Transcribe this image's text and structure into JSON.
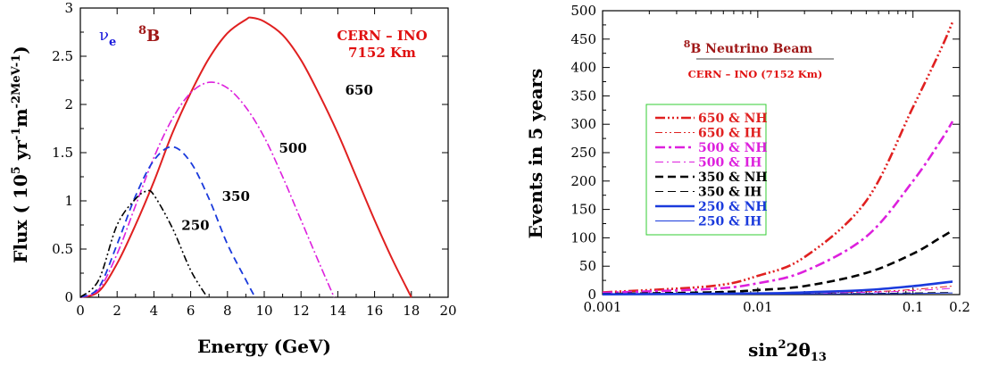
{
  "chart_data": [
    {
      "type": "line",
      "title": "",
      "xlabel": "Energy (GeV)",
      "ylabel": "Flux ( 10^5 yr^-1 m^-2 MeV^-1 )",
      "ylabel_parts": {
        "pre": "Flux ( 10",
        "exp": "5",
        "mid": " yr",
        "e1": "-1",
        "m": "m",
        "e2": "-2",
        "unit": "MeV",
        "e3": "-1",
        "post": ")"
      },
      "xlim": [
        0,
        20
      ],
      "ylim": [
        0,
        3
      ],
      "xticks": [
        0,
        2,
        4,
        6,
        8,
        10,
        12,
        14,
        16,
        18,
        20
      ],
      "yticks": [
        0,
        0.5,
        1,
        1.5,
        2,
        2.5,
        3
      ],
      "ytick_labels": [
        "0",
        "0.5",
        "1",
        "1.5",
        "2",
        "2.5",
        "3"
      ],
      "grid": false,
      "annotations": {
        "nu_label": {
          "base": "ν",
          "sub": "e",
          "color": "#1a1adc"
        },
        "b8_label": {
          "sup": "8",
          "base": "B",
          "color": "#a01818"
        },
        "baseline_label": {
          "line1": "CERN – INO",
          "line2": "7152 Km",
          "color": "#e01010"
        }
      },
      "series": [
        {
          "name": "650",
          "color": "#e02020",
          "dash": "solid",
          "width": 2,
          "points": [
            [
              0,
              0
            ],
            [
              1,
              0.06
            ],
            [
              2,
              0.35
            ],
            [
              3,
              0.75
            ],
            [
              4,
              1.2
            ],
            [
              5,
              1.7
            ],
            [
              6,
              2.12
            ],
            [
              7,
              2.48
            ],
            [
              8,
              2.74
            ],
            [
              9,
              2.88
            ],
            [
              9.3,
              2.9
            ],
            [
              10,
              2.86
            ],
            [
              11,
              2.72
            ],
            [
              12,
              2.46
            ],
            [
              13,
              2.1
            ],
            [
              14,
              1.7
            ],
            [
              15,
              1.25
            ],
            [
              16,
              0.8
            ],
            [
              17,
              0.38
            ],
            [
              18,
              0
            ]
          ]
        },
        {
          "name": "500",
          "color": "#dd20dd",
          "dash": "9,3,2,3",
          "width": 1.6,
          "points": [
            [
              0,
              0
            ],
            [
              1,
              0.08
            ],
            [
              2,
              0.45
            ],
            [
              3,
              0.95
            ],
            [
              4,
              1.45
            ],
            [
              5,
              1.85
            ],
            [
              6,
              2.12
            ],
            [
              7,
              2.23
            ],
            [
              8,
              2.17
            ],
            [
              9,
              1.97
            ],
            [
              10,
              1.66
            ],
            [
              11,
              1.25
            ],
            [
              12,
              0.8
            ],
            [
              13,
              0.35
            ],
            [
              13.8,
              0
            ]
          ]
        },
        {
          "name": "350",
          "color": "#1a3adc",
          "dash": "8,5",
          "width": 1.8,
          "points": [
            [
              0,
              0
            ],
            [
              1,
              0.1
            ],
            [
              2,
              0.55
            ],
            [
              3,
              1.05
            ],
            [
              4,
              1.42
            ],
            [
              5,
              1.56
            ],
            [
              6,
              1.4
            ],
            [
              7,
              1.02
            ],
            [
              8,
              0.55
            ],
            [
              9,
              0.18
            ],
            [
              9.5,
              0
            ]
          ]
        },
        {
          "name": "250",
          "color": "#000000",
          "dash": "8,3,2,3,2,3",
          "width": 1.6,
          "points": [
            [
              0,
              0
            ],
            [
              1,
              0.18
            ],
            [
              2,
              0.75
            ],
            [
              3,
              1.02
            ],
            [
              3.6,
              1.1
            ],
            [
              4,
              1.06
            ],
            [
              5,
              0.72
            ],
            [
              6,
              0.28
            ],
            [
              6.9,
              0
            ]
          ]
        }
      ],
      "curve_labels": [
        {
          "text": "650",
          "x": 14.4,
          "y": 2.1
        },
        {
          "text": "500",
          "x": 10.8,
          "y": 1.5
        },
        {
          "text": "350",
          "x": 7.7,
          "y": 1.0
        },
        {
          "text": "250",
          "x": 5.5,
          "y": 0.7
        }
      ]
    },
    {
      "type": "line",
      "title": "",
      "xlabel": "sin²2θ13",
      "xlabel_parts": {
        "base": "sin",
        "sup": "2",
        "mid": "2θ",
        "sub": "13"
      },
      "ylabel": "Events in 5 years",
      "xscale": "log",
      "xlim": [
        0.001,
        0.2
      ],
      "ylim": [
        0,
        500
      ],
      "xticks": [
        0.001,
        0.01,
        0.1,
        0.2
      ],
      "xtick_labels": [
        "0.001",
        "0.01",
        "0.1",
        "0.2"
      ],
      "yticks": [
        0,
        50,
        100,
        150,
        200,
        250,
        300,
        350,
        400,
        450,
        500
      ],
      "grid": false,
      "annotations": {
        "beam_title": {
          "sup": "8",
          "base": "B",
          "rest": " Neutrino Beam",
          "color": "#a01818"
        },
        "baseline": {
          "text": "CERN – INO (7152 Km)",
          "color": "#e01010"
        }
      },
      "legend_position": "center-left",
      "series": [
        {
          "name": "650 & NH",
          "color": "#e02020",
          "dash": "11,3,2,3,2,3,2,3",
          "width": 2.6,
          "points": [
            [
              0.001,
              4
            ],
            [
              0.005,
              15
            ],
            [
              0.01,
              33
            ],
            [
              0.02,
              66
            ],
            [
              0.05,
              165
            ],
            [
              0.1,
              330
            ],
            [
              0.15,
              430
            ],
            [
              0.18,
              480
            ]
          ]
        },
        {
          "name": "650 & IH",
          "color": "#e02020",
          "dash": "8,3,2,3,2,3",
          "width": 1,
          "points": [
            [
              0.001,
              1
            ],
            [
              0.01,
              2
            ],
            [
              0.05,
              5
            ],
            [
              0.1,
              9
            ],
            [
              0.18,
              15
            ]
          ]
        },
        {
          "name": "500 & NH",
          "color": "#dd20dd",
          "dash": "11,4,3,4",
          "width": 2.6,
          "points": [
            [
              0.001,
              3
            ],
            [
              0.005,
              10
            ],
            [
              0.01,
              20
            ],
            [
              0.02,
              41
            ],
            [
              0.05,
              102
            ],
            [
              0.1,
              200
            ],
            [
              0.15,
              270
            ],
            [
              0.18,
              305
            ]
          ]
        },
        {
          "name": "500 & IH",
          "color": "#dd20dd",
          "dash": "9,4,2,4",
          "width": 1,
          "points": [
            [
              0.001,
              1
            ],
            [
              0.01,
              2
            ],
            [
              0.05,
              4
            ],
            [
              0.1,
              7
            ],
            [
              0.18,
              11
            ]
          ]
        },
        {
          "name": "350 & NH",
          "color": "#000000",
          "dash": "9,5",
          "width": 2.6,
          "points": [
            [
              0.001,
              1
            ],
            [
              0.005,
              4
            ],
            [
              0.01,
              8
            ],
            [
              0.02,
              15
            ],
            [
              0.05,
              38
            ],
            [
              0.1,
              72
            ],
            [
              0.15,
              100
            ],
            [
              0.18,
              113
            ]
          ]
        },
        {
          "name": "350 & IH",
          "color": "#000000",
          "dash": "9,5",
          "width": 1,
          "points": [
            [
              0.001,
              0.5
            ],
            [
              0.01,
              1
            ],
            [
              0.05,
              2
            ],
            [
              0.1,
              3
            ],
            [
              0.18,
              4
            ]
          ]
        },
        {
          "name": "250 & NH",
          "color": "#1a3adc",
          "dash": "solid",
          "width": 2.6,
          "points": [
            [
              0.001,
              0.5
            ],
            [
              0.01,
              2
            ],
            [
              0.02,
              4
            ],
            [
              0.05,
              8
            ],
            [
              0.1,
              15
            ],
            [
              0.18,
              23
            ]
          ]
        },
        {
          "name": "250 & IH",
          "color": "#1a3adc",
          "dash": "solid",
          "width": 1,
          "points": [
            [
              0.001,
              0.3
            ],
            [
              0.01,
              0.8
            ],
            [
              0.05,
              1.5
            ],
            [
              0.1,
              2
            ],
            [
              0.18,
              3
            ]
          ]
        }
      ]
    }
  ]
}
